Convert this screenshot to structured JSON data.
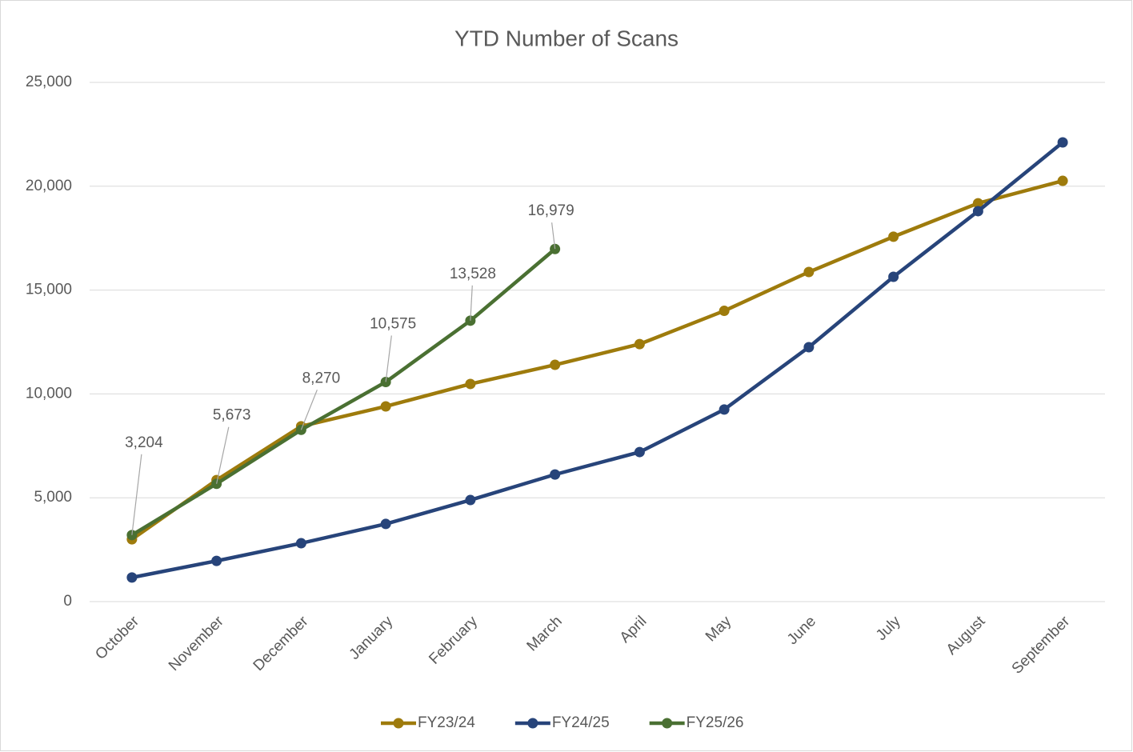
{
  "chart_data": {
    "type": "line",
    "title": "YTD Number of Scans",
    "categories": [
      "October",
      "November",
      "December",
      "January",
      "February",
      "March",
      "April",
      "May",
      "June",
      "July",
      "August",
      "September"
    ],
    "series": [
      {
        "name": "FY23/24",
        "color": "#9e7b0c",
        "values": [
          3000,
          5850,
          8440,
          9400,
          10480,
          11400,
          12400,
          14000,
          15870,
          17570,
          19180,
          20260
        ]
      },
      {
        "name": "FY24/25",
        "color": "#27447a",
        "values": [
          1160,
          1960,
          2810,
          3740,
          4890,
          6120,
          7200,
          9250,
          12250,
          15640,
          18800,
          22110
        ]
      },
      {
        "name": "FY25/26",
        "color": "#4a7032",
        "values": [
          3204,
          5673,
          8270,
          10575,
          13528,
          16979,
          null,
          null,
          null,
          null,
          null,
          null
        ],
        "value_labels": [
          "3,204",
          "5,673",
          "8,270",
          "10,575",
          "13,528",
          "16,979",
          null,
          null,
          null,
          null,
          null,
          null
        ]
      }
    ],
    "ylim": [
      0,
      25000
    ],
    "yticks": [
      0,
      {
        "value": 5000,
        "label": "5,000"
      },
      {
        "value": 10000,
        "label": "10,000"
      },
      {
        "value": 15000,
        "label": "15,000"
      },
      {
        "value": 20000,
        "label": "20,000"
      },
      {
        "value": 25000,
        "label": "25,000"
      }
    ],
    "grid": true,
    "legend": "bottom"
  }
}
